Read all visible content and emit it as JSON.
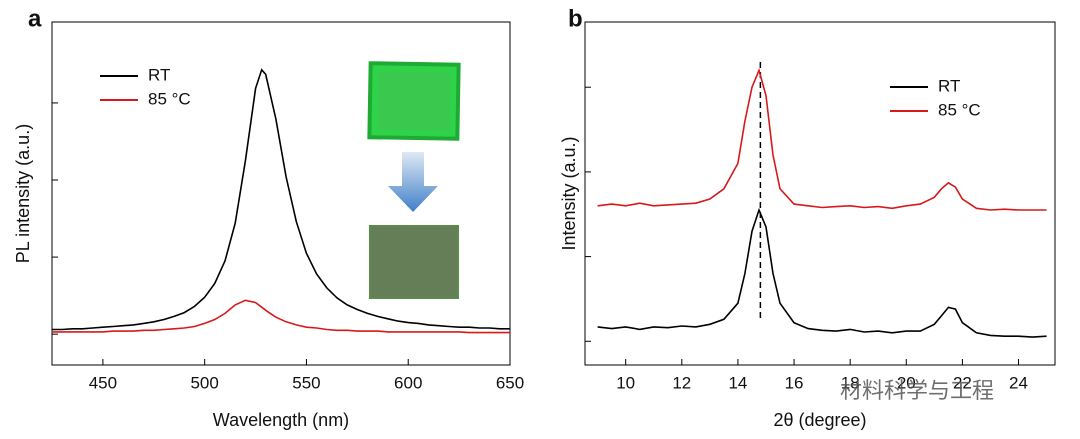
{
  "chart_data": [
    {
      "type": "line",
      "panel": "a",
      "xlabel": "Wavelength (nm)",
      "ylabel": "PL intensity (a.u.)",
      "x": [
        425,
        430,
        435,
        440,
        445,
        450,
        455,
        460,
        465,
        470,
        475,
        480,
        485,
        490,
        495,
        500,
        505,
        510,
        515,
        520,
        525,
        528,
        530,
        535,
        540,
        545,
        550,
        555,
        560,
        565,
        570,
        575,
        580,
        585,
        590,
        595,
        600,
        605,
        610,
        615,
        620,
        625,
        630,
        635,
        640,
        645,
        650
      ],
      "series": [
        {
          "name": "RT",
          "color": "#000000",
          "values": [
            0.06,
            0.06,
            0.07,
            0.07,
            0.08,
            0.09,
            0.1,
            0.11,
            0.12,
            0.14,
            0.16,
            0.19,
            0.23,
            0.28,
            0.36,
            0.48,
            0.66,
            0.95,
            1.44,
            2.25,
            3.19,
            3.43,
            3.37,
            2.79,
            2.04,
            1.46,
            1.05,
            0.78,
            0.6,
            0.47,
            0.38,
            0.32,
            0.27,
            0.23,
            0.2,
            0.17,
            0.15,
            0.14,
            0.12,
            0.11,
            0.1,
            0.09,
            0.09,
            0.08,
            0.08,
            0.07,
            0.07
          ]
        },
        {
          "name": "85 °C",
          "color": "#d7191c",
          "values": [
            0.03,
            0.03,
            0.03,
            0.03,
            0.03,
            0.03,
            0.04,
            0.04,
            0.04,
            0.05,
            0.05,
            0.06,
            0.07,
            0.08,
            0.1,
            0.14,
            0.19,
            0.27,
            0.38,
            0.44,
            0.41,
            0.35,
            0.31,
            0.22,
            0.16,
            0.12,
            0.09,
            0.08,
            0.06,
            0.05,
            0.05,
            0.04,
            0.04,
            0.04,
            0.03,
            0.03,
            0.03,
            0.03,
            0.03,
            0.03,
            0.03,
            0.03,
            0.02,
            0.02,
            0.02,
            0.02,
            0.02
          ]
        }
      ],
      "xlim": [
        425,
        650
      ],
      "xticks": [
        450,
        500,
        550,
        600,
        650
      ],
      "ylim": [
        -0.4,
        4.05
      ],
      "yticks": [
        0,
        1,
        2,
        3
      ],
      "legend": "upper-left"
    },
    {
      "type": "line",
      "panel": "b",
      "xlabel": "2θ (degree)",
      "ylabel": "Intensity (a.u.)",
      "x": [
        9,
        9.5,
        10,
        10.5,
        11,
        11.5,
        12,
        12.5,
        13,
        13.5,
        14,
        14.25,
        14.5,
        14.75,
        15,
        15.25,
        15.5,
        16,
        16.5,
        17,
        17.5,
        18,
        18.5,
        19,
        19.5,
        20,
        20.5,
        21,
        21.25,
        21.5,
        21.75,
        22,
        22.5,
        23,
        23.5,
        24,
        24.5,
        25
      ],
      "series": [
        {
          "name": "RT",
          "color": "#000000",
          "values": [
            0.17,
            0.15,
            0.17,
            0.14,
            0.17,
            0.16,
            0.18,
            0.17,
            0.2,
            0.26,
            0.45,
            0.8,
            1.3,
            1.55,
            1.35,
            0.8,
            0.45,
            0.22,
            0.15,
            0.13,
            0.12,
            0.14,
            0.11,
            0.12,
            0.1,
            0.12,
            0.12,
            0.2,
            0.3,
            0.4,
            0.38,
            0.22,
            0.1,
            0.07,
            0.06,
            0.06,
            0.05,
            0.06
          ]
        },
        {
          "name": "85 °C",
          "color": "#d7191c",
          "values": [
            1.6,
            1.62,
            1.6,
            1.63,
            1.6,
            1.61,
            1.62,
            1.63,
            1.68,
            1.8,
            2.1,
            2.6,
            3.0,
            3.2,
            2.9,
            2.2,
            1.8,
            1.62,
            1.6,
            1.58,
            1.59,
            1.6,
            1.58,
            1.59,
            1.57,
            1.6,
            1.62,
            1.7,
            1.8,
            1.87,
            1.82,
            1.68,
            1.57,
            1.55,
            1.56,
            1.55,
            1.55,
            1.55
          ]
        }
      ],
      "xlim": [
        8.55,
        25.3
      ],
      "xticks": [
        10,
        12,
        14,
        16,
        18,
        20,
        22,
        24
      ],
      "ylim": [
        -0.28,
        3.77
      ],
      "yticks": [
        0,
        1,
        2,
        3
      ],
      "vline": 14.8,
      "legend": "upper-right",
      "watermark": "材料科学与工程"
    }
  ]
}
